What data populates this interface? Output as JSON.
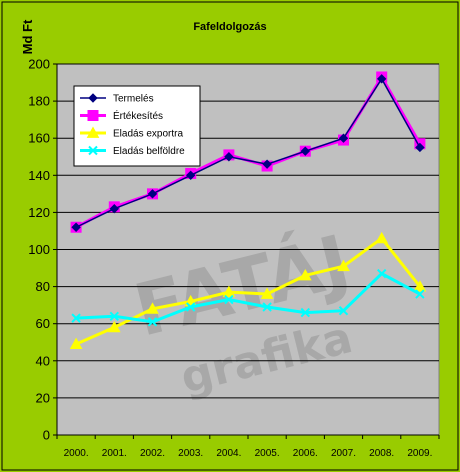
{
  "colors": {
    "outer_background": "#99CC00",
    "plot_background": "#C0C0C0",
    "termeles": "#000080",
    "ertekesites": "#FF00FF",
    "export": "#FFFF00",
    "belfold": "#00FFFF"
  },
  "watermark": {
    "line1": "FATÁJ",
    "line2": "grafika"
  },
  "chart_data": {
    "type": "line",
    "title": "Fafeldolgozás",
    "ylabel": "Md Ft",
    "xlabel": "",
    "categories": [
      "2000.",
      "2001.",
      "2002.",
      "2003.",
      "2004.",
      "2005.",
      "2006.",
      "2007.",
      "2008.",
      "2009."
    ],
    "ylim": [
      0,
      200
    ],
    "yticks": [
      0,
      20,
      40,
      60,
      80,
      100,
      120,
      140,
      160,
      180,
      200
    ],
    "grid": true,
    "legend_position": "top-left",
    "series": [
      {
        "name": "Termelés",
        "color": "#000080",
        "marker": "diamond",
        "values": [
          112,
          122,
          130,
          140,
          150,
          146,
          153,
          160,
          192,
          155
        ]
      },
      {
        "name": "Értékesítés",
        "color": "#FF00FF",
        "marker": "square",
        "values": [
          112,
          123,
          130,
          141,
          151,
          145,
          153,
          159,
          193,
          157
        ]
      },
      {
        "name": "Eladás exportra",
        "color": "#FFFF00",
        "marker": "triangle",
        "values": [
          49,
          58,
          68,
          72,
          77,
          76,
          86,
          91,
          106,
          80
        ]
      },
      {
        "name": "Eladás belföldre",
        "color": "#00FFFF",
        "marker": "x",
        "values": [
          63,
          64,
          61,
          69,
          73,
          69,
          66,
          67,
          87,
          76
        ]
      }
    ]
  }
}
